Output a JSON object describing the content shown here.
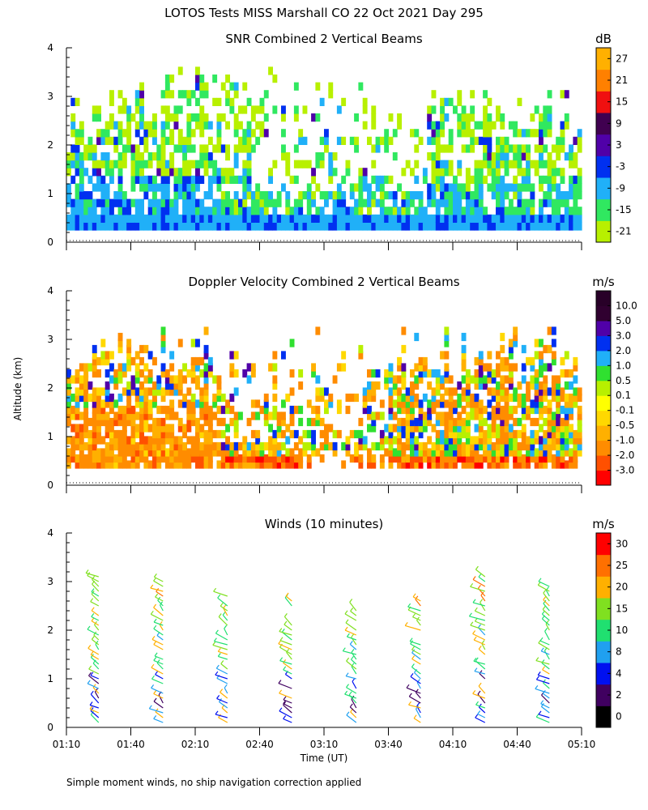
{
  "figure": {
    "title": "LOTOS Tests MISS Marshall CO  22 Oct 2021 Day 295",
    "ylabel": "Altitude (km)",
    "xlabel": "Time (UT)",
    "footnote": "Simple moment winds, no ship navigation correction applied",
    "x_tick_labels": [
      "01:10",
      "01:40",
      "02:10",
      "02:40",
      "03:10",
      "03:40",
      "04:10",
      "04:40",
      "05:10"
    ],
    "y_tick_labels": [
      "0",
      "1",
      "2",
      "3",
      "4"
    ]
  },
  "chart_data": [
    {
      "type": "heatmap",
      "title": "SNR Combined 2 Vertical Beams",
      "colorbar_unit": "dB",
      "x_range": [
        "01:10",
        "05:10"
      ],
      "ylim": [
        0,
        4
      ],
      "levels": [
        -21,
        -15,
        -9,
        -3,
        3,
        9,
        15,
        21,
        27
      ],
      "level_colors": [
        "#b8f000",
        "#30e860",
        "#20b0f8",
        "#0030f0",
        "#5000a8",
        "#400050",
        "#f01010",
        "#ff8000",
        "#ffb000"
      ],
      "approx_max_echo_altitude_km": 3.8,
      "approx_min_echo_altitude_km": 0.25
    },
    {
      "type": "heatmap",
      "title": "Doppler Velocity Combined 2 Vertical Beams",
      "colorbar_unit": "m/s",
      "x_range": [
        "01:10",
        "05:10"
      ],
      "ylim": [
        0,
        4
      ],
      "levels": [
        "-3.0",
        "-2.0",
        "-1.0",
        "-0.5",
        "-0.1",
        "0.1",
        "0.5",
        "1.0",
        "2.0",
        "3.0",
        "5.0",
        "10.0"
      ],
      "level_colors": [
        "#ff0000",
        "#ff5000",
        "#ff8c00",
        "#ffb000",
        "#ffd800",
        "#ffff00",
        "#b8f000",
        "#30e030",
        "#20b0f8",
        "#0030f0",
        "#5000a8",
        "#300030",
        "#280028"
      ],
      "approx_max_echo_altitude_km": 3.3
    },
    {
      "type": "scatter",
      "title": "Winds (10 minutes)",
      "colorbar_unit": "m/s",
      "x_range": [
        "01:10",
        "05:10"
      ],
      "ylim": [
        0,
        4
      ],
      "speed_levels": [
        0,
        2,
        4,
        8,
        10,
        15,
        20,
        25,
        30
      ],
      "speed_colors": [
        "#000000",
        "#400060",
        "#0010f0",
        "#20a0f0",
        "#20e070",
        "#80e020",
        "#ffb000",
        "#ff7000",
        "#ff0000"
      ],
      "profile_times": [
        "01:25",
        "01:55",
        "02:25",
        "02:55",
        "03:25",
        "03:55",
        "04:25",
        "04:55"
      ],
      "profiles": [
        {
          "time": "01:25",
          "alt_min_km": 0.1,
          "alt_max_km": 3.1
        },
        {
          "time": "01:55",
          "alt_min_km": 0.1,
          "alt_max_km": 3.0
        },
        {
          "time": "02:25",
          "alt_min_km": 0.1,
          "alt_max_km": 2.7
        },
        {
          "time": "02:55",
          "alt_min_km": 0.1,
          "alt_max_km": 2.7
        },
        {
          "time": "03:25",
          "alt_min_km": 0.1,
          "alt_max_km": 2.4
        },
        {
          "time": "03:55",
          "alt_min_km": 0.1,
          "alt_max_km": 2.6
        },
        {
          "time": "04:25",
          "alt_min_km": 0.1,
          "alt_max_km": 3.1
        },
        {
          "time": "04:55",
          "alt_min_km": 0.1,
          "alt_max_km": 3.0
        }
      ]
    }
  ]
}
